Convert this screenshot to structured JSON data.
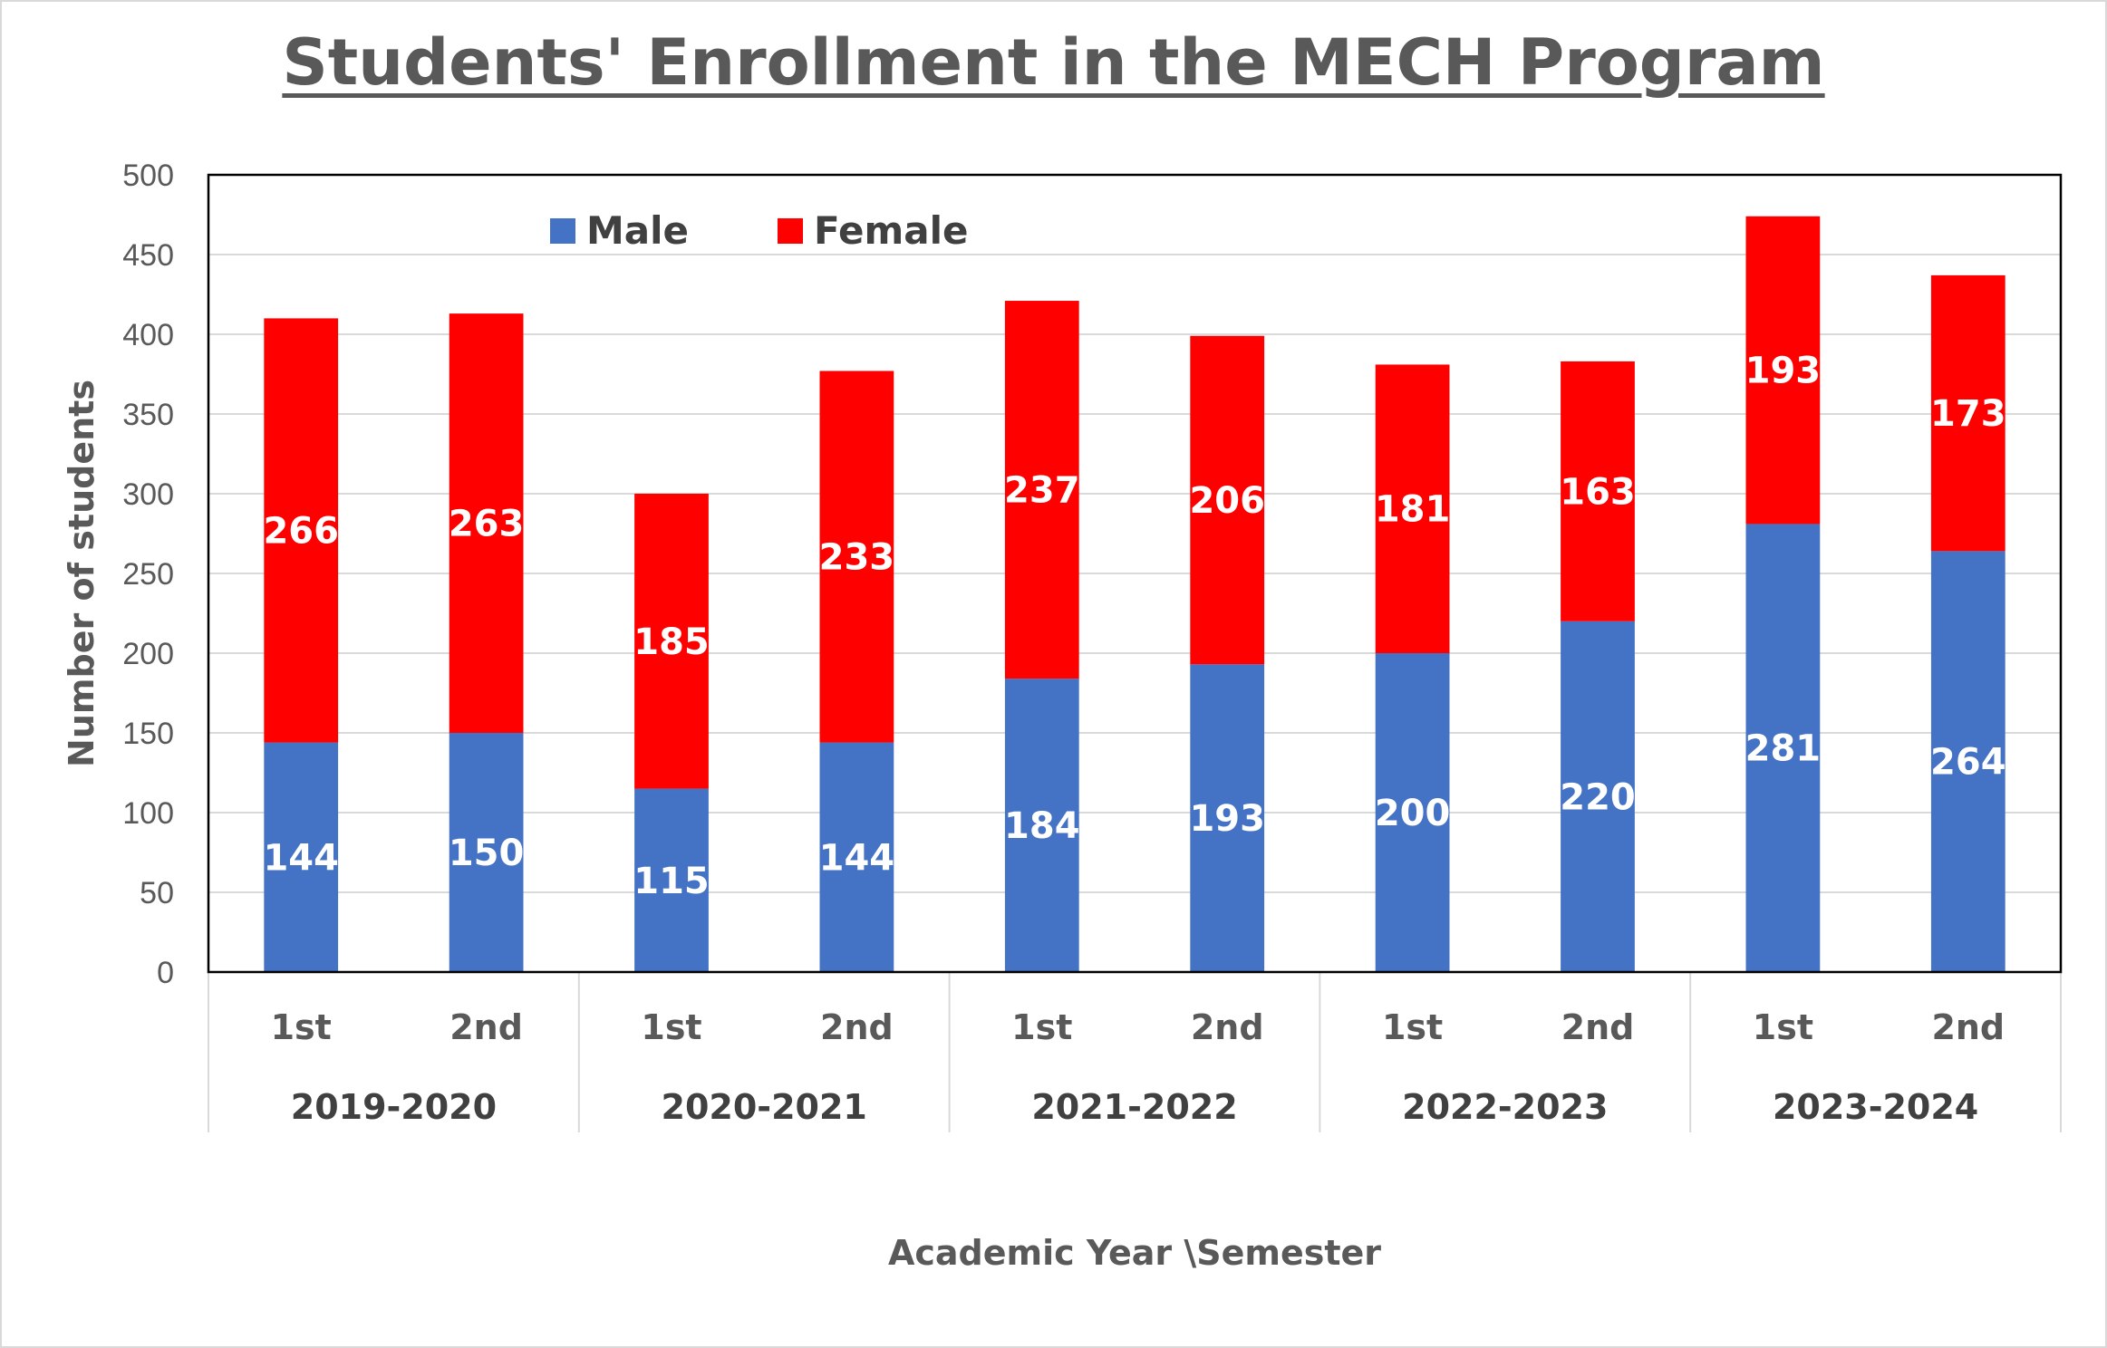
{
  "chart_data": {
    "type": "bar",
    "stacked": true,
    "title": "Students' Enrollment in the MECH Program",
    "xlabel": "Academic Year \\Semester",
    "ylabel": "Number of students",
    "ylim": [
      0,
      500
    ],
    "yticks": [
      0,
      50,
      100,
      150,
      200,
      250,
      300,
      350,
      400,
      450,
      500
    ],
    "grid": true,
    "legend_position": "top-left",
    "groups": [
      {
        "label": "2019-2020",
        "categories": [
          "1st",
          "2nd"
        ]
      },
      {
        "label": "2020-2021",
        "categories": [
          "1st",
          "2nd"
        ]
      },
      {
        "label": "2021-2022",
        "categories": [
          "1st",
          "2nd"
        ]
      },
      {
        "label": "2022-2023",
        "categories": [
          "1st",
          "2nd"
        ]
      },
      {
        "label": "2023-2024",
        "categories": [
          "1st",
          "2nd"
        ]
      }
    ],
    "series": [
      {
        "name": "Male",
        "color": "#4472c4",
        "values": [
          144,
          150,
          115,
          144,
          184,
          193,
          200,
          220,
          281,
          264
        ]
      },
      {
        "name": "Female",
        "color": "#ff0000",
        "values": [
          266,
          263,
          185,
          233,
          237,
          206,
          181,
          163,
          193,
          173
        ]
      }
    ]
  }
}
